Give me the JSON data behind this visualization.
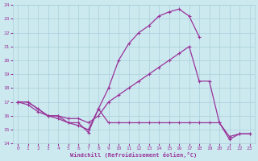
{
  "xlabel": "Windchill (Refroidissement éolien,°C)",
  "xlim": [
    -0.5,
    23.5
  ],
  "ylim": [
    14,
    24
  ],
  "xticks": [
    0,
    1,
    2,
    3,
    4,
    5,
    6,
    7,
    8,
    9,
    10,
    11,
    12,
    13,
    14,
    15,
    16,
    17,
    18,
    19,
    20,
    21,
    22,
    23
  ],
  "yticks": [
    14,
    15,
    16,
    17,
    18,
    19,
    20,
    21,
    22,
    23,
    24
  ],
  "background_color": "#cce9f0",
  "grid_color": "#aacfda",
  "line_color": "#993399",
  "line_width": 0.9,
  "marker": "+",
  "marker_size": 3.5,
  "curves": [
    {
      "x": [
        0,
        1,
        2,
        3,
        4,
        5,
        6,
        7,
        8,
        9,
        10,
        11,
        12,
        13,
        14,
        15,
        16,
        17,
        18
      ],
      "y": [
        17,
        17,
        16.5,
        16.0,
        16.0,
        15.5,
        15.5,
        14.8,
        16.5,
        18.0,
        20.0,
        21.2,
        22.0,
        22.5,
        23.2,
        23.5,
        23.7,
        23.2,
        21.7
      ]
    },
    {
      "x": [
        0,
        1,
        2,
        3,
        4,
        5,
        6,
        7,
        8,
        9,
        10,
        11,
        12,
        13,
        14,
        15,
        16,
        17,
        18,
        19,
        20,
        21,
        22,
        23
      ],
      "y": [
        17,
        17,
        16.5,
        16.0,
        16.0,
        15.8,
        15.8,
        15.5,
        16.0,
        17.0,
        17.5,
        18.0,
        18.5,
        19.0,
        19.5,
        20.0,
        20.5,
        21.0,
        18.5,
        18.5,
        15.5,
        14.5,
        14.7,
        14.7
      ]
    },
    {
      "x": [
        0,
        1,
        2,
        3,
        4,
        5,
        6,
        7,
        8,
        9,
        10,
        11,
        12,
        13,
        14,
        15,
        16,
        17,
        18,
        19,
        20,
        21,
        22,
        23
      ],
      "y": [
        17,
        16.8,
        16.3,
        16.0,
        15.8,
        15.5,
        15.3,
        15.0,
        16.5,
        15.5,
        15.5,
        15.5,
        15.5,
        15.5,
        15.5,
        15.5,
        15.5,
        15.5,
        15.5,
        15.5,
        15.5,
        14.3,
        14.7,
        14.7
      ]
    }
  ]
}
